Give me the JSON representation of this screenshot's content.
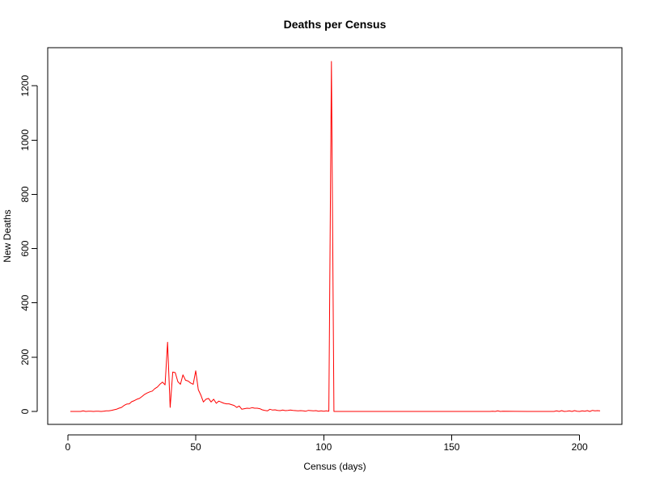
{
  "chart_data": {
    "type": "line",
    "title": "Deaths per Census",
    "xlabel": "Census (days)",
    "ylabel": "New Deaths",
    "xlim": [
      1,
      208
    ],
    "ylim": [
      0,
      1290
    ],
    "x_ticks": [
      0,
      50,
      100,
      150,
      200
    ],
    "y_ticks": [
      0,
      200,
      400,
      600,
      800,
      1000,
      1200
    ],
    "grid": false,
    "legend": "none",
    "line_color": "#ff0000",
    "series": [
      {
        "x": [
          1,
          2,
          3,
          4,
          5,
          6,
          7,
          8,
          9,
          10,
          11,
          12,
          13,
          14,
          15,
          16,
          17,
          18,
          19,
          20,
          21,
          22,
          23,
          24,
          25,
          26,
          27,
          28,
          29,
          30,
          31,
          32,
          33,
          34,
          35,
          36,
          37,
          38,
          39,
          40,
          41,
          42,
          43,
          44,
          45,
          46,
          47,
          48,
          49,
          50,
          51,
          52,
          53,
          54,
          55,
          56,
          57,
          58,
          59,
          60,
          61,
          62,
          63,
          64,
          65,
          66,
          67,
          68,
          69,
          70,
          71,
          72,
          73,
          74,
          75,
          76,
          77,
          78,
          79,
          80,
          81,
          82,
          83,
          84,
          85,
          86,
          87,
          88,
          89,
          90,
          91,
          92,
          93,
          94,
          95,
          96,
          97,
          98,
          99,
          100,
          101,
          102,
          103,
          104,
          105,
          110,
          120,
          130,
          140,
          150,
          160,
          165,
          166,
          167,
          168,
          169,
          170,
          180,
          190,
          191,
          192,
          193,
          194,
          195,
          196,
          197,
          198,
          199,
          200,
          201,
          202,
          203,
          204,
          205,
          206,
          207,
          208
        ],
        "y": [
          0,
          0,
          0,
          0,
          0,
          2,
          0,
          1,
          1,
          0,
          1,
          1,
          0,
          1,
          2,
          2,
          4,
          6,
          8,
          12,
          15,
          22,
          27,
          28,
          36,
          40,
          45,
          48,
          55,
          63,
          68,
          72,
          75,
          84,
          90,
          100,
          108,
          98,
          255,
          15,
          145,
          143,
          110,
          100,
          135,
          115,
          112,
          105,
          100,
          150,
          80,
          60,
          35,
          45,
          48,
          35,
          45,
          30,
          38,
          34,
          30,
          28,
          28,
          25,
          22,
          15,
          20,
          8,
          10,
          12,
          11,
          14,
          12,
          12,
          10,
          6,
          4,
          2,
          8,
          5,
          6,
          4,
          3,
          5,
          3,
          4,
          5,
          4,
          3,
          2,
          3,
          2,
          1,
          4,
          3,
          2,
          3,
          1,
          2,
          1,
          2,
          1,
          1290,
          0,
          0,
          0,
          0,
          0,
          0,
          0,
          0,
          0,
          1,
          0,
          2,
          0,
          1,
          0,
          0,
          2,
          0,
          3,
          0,
          1,
          2,
          0,
          3,
          1,
          0,
          2,
          1,
          3,
          0,
          4,
          2,
          3,
          2
        ]
      }
    ]
  }
}
